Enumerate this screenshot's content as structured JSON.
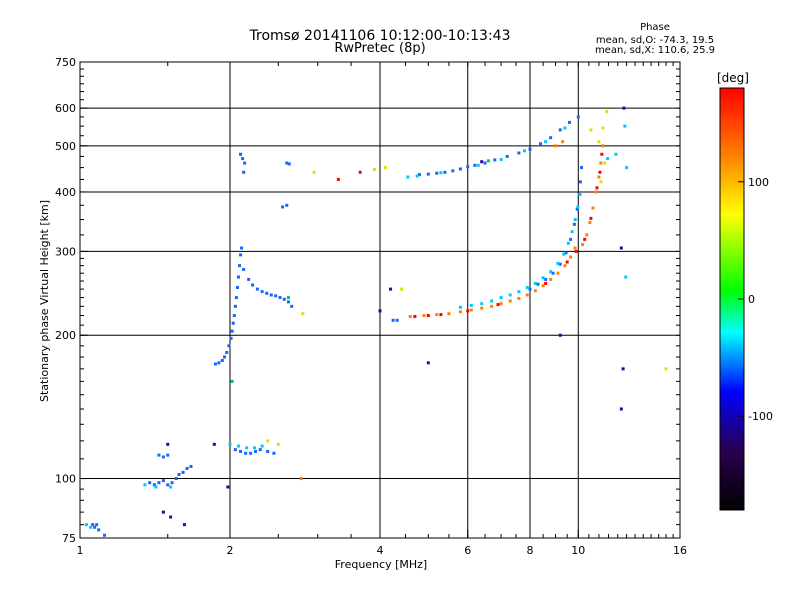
{
  "chart_data": {
    "type": "scatter",
    "title_line1": "Tromsø 20141106 10:12:00-10:13:43",
    "title_line2": "RwPretec (8p)",
    "xlabel": "Frequency [MHz]",
    "ylabel": "Stationary phase Virtual Height [km]",
    "x_scale": "log",
    "y_scale": "log",
    "xlim": [
      1,
      16
    ],
    "ylim": [
      75,
      750
    ],
    "x_ticks": [
      1,
      2,
      4,
      6,
      8,
      10,
      16
    ],
    "y_ticks": [
      75,
      100,
      200,
      300,
      400,
      500,
      600,
      750
    ],
    "grid_x": [
      2,
      4,
      6,
      8,
      10
    ],
    "grid_y": [
      100,
      200,
      300,
      400,
      500,
      600
    ],
    "grid": true,
    "stats": {
      "title": "Phase",
      "line_o": "mean, sd,O: -74.3, 19.5",
      "line_x": "mean, sd,X: 110.6, 25.9"
    },
    "colorbar": {
      "label": "[deg]",
      "range": [
        -180,
        180
      ],
      "ticks": [
        -100,
        0,
        100
      ],
      "colors": [
        "#000000",
        "#2a0050",
        "#0000ff",
        "#00ffff",
        "#00ff00",
        "#ffff00",
        "#ff8000",
        "#ff0000"
      ]
    },
    "series": [
      {
        "color": "#1565ff",
        "points": [
          [
            1.06,
            80
          ],
          [
            1.07,
            79
          ],
          [
            1.09,
            78
          ],
          [
            1.12,
            76
          ],
          [
            1.08,
            80
          ],
          [
            1.38,
            98
          ],
          [
            1.41,
            97
          ],
          [
            1.44,
            98
          ],
          [
            1.47,
            99
          ],
          [
            1.5,
            97
          ],
          [
            1.53,
            98
          ],
          [
            1.56,
            100
          ],
          [
            1.58,
            102
          ],
          [
            1.61,
            103
          ],
          [
            1.64,
            105
          ],
          [
            1.67,
            106
          ],
          [
            1.44,
            112
          ],
          [
            1.47,
            111
          ],
          [
            1.5,
            112
          ],
          [
            1.87,
            174
          ],
          [
            1.9,
            175
          ],
          [
            1.93,
            177
          ],
          [
            1.95,
            180
          ],
          [
            1.97,
            184
          ],
          [
            1.99,
            190
          ],
          [
            2.01,
            197
          ],
          [
            2.02,
            204
          ],
          [
            2.03,
            212
          ],
          [
            2.04,
            220
          ],
          [
            2.05,
            230
          ],
          [
            2.06,
            240
          ],
          [
            2.07,
            252
          ],
          [
            2.08,
            265
          ],
          [
            2.09,
            280
          ],
          [
            2.1,
            295
          ],
          [
            2.11,
            305
          ],
          [
            2.13,
            275
          ],
          [
            2.18,
            262
          ],
          [
            2.22,
            255
          ],
          [
            2.27,
            250
          ],
          [
            2.32,
            247
          ],
          [
            2.37,
            245
          ],
          [
            2.42,
            243
          ],
          [
            2.47,
            242
          ],
          [
            2.52,
            240
          ],
          [
            2.57,
            238
          ],
          [
            2.62,
            235
          ],
          [
            2.66,
            230
          ],
          [
            2.05,
            115
          ],
          [
            2.1,
            114
          ],
          [
            2.15,
            113
          ],
          [
            2.2,
            113
          ],
          [
            2.25,
            114
          ],
          [
            2.3,
            115
          ],
          [
            2.38,
            114
          ],
          [
            2.45,
            113
          ],
          [
            2.1,
            480
          ],
          [
            2.12,
            470
          ],
          [
            2.14,
            460
          ],
          [
            2.13,
            440
          ],
          [
            2.6,
            460
          ],
          [
            2.63,
            458
          ],
          [
            2.6,
            375
          ],
          [
            2.55,
            372
          ],
          [
            4.25,
            215
          ],
          [
            4.33,
            215
          ],
          [
            4.8,
            435
          ],
          [
            5.0,
            436
          ],
          [
            5.2,
            438
          ],
          [
            5.4,
            440
          ],
          [
            5.6,
            443
          ],
          [
            5.8,
            447
          ],
          [
            6.0,
            452
          ],
          [
            6.2,
            455
          ],
          [
            6.5,
            460
          ],
          [
            6.8,
            467
          ],
          [
            7.2,
            475
          ],
          [
            7.6,
            483
          ],
          [
            8.0,
            492
          ],
          [
            8.4,
            505
          ],
          [
            8.8,
            520
          ],
          [
            9.2,
            540
          ],
          [
            9.6,
            560
          ],
          [
            10.0,
            575
          ],
          [
            8.0,
            250
          ],
          [
            8.3,
            256
          ],
          [
            8.6,
            262
          ],
          [
            8.9,
            270
          ],
          [
            9.2,
            282
          ],
          [
            9.45,
            298
          ],
          [
            9.65,
            318
          ],
          [
            9.82,
            342
          ],
          [
            9.95,
            368
          ],
          [
            10.05,
            395
          ],
          [
            10.1,
            420
          ],
          [
            10.15,
            450
          ]
        ]
      },
      {
        "color": "#00c8ff",
        "points": [
          [
            1.03,
            80
          ],
          [
            1.05,
            79
          ],
          [
            1.35,
            97
          ],
          [
            1.42,
            96
          ],
          [
            1.52,
            96
          ],
          [
            2.0,
            118
          ],
          [
            2.08,
            117
          ],
          [
            2.16,
            116
          ],
          [
            2.24,
            116
          ],
          [
            2.32,
            117
          ],
          [
            4.55,
            430
          ],
          [
            4.75,
            432
          ],
          [
            5.3,
            439
          ],
          [
            6.3,
            455
          ],
          [
            7.0,
            468
          ],
          [
            7.8,
            488
          ],
          [
            8.6,
            510
          ],
          [
            9.4,
            545
          ],
          [
            5.8,
            229
          ],
          [
            6.1,
            231
          ],
          [
            6.4,
            233
          ],
          [
            6.7,
            236
          ],
          [
            7.0,
            240
          ],
          [
            7.3,
            243
          ],
          [
            7.6,
            247
          ],
          [
            7.9,
            252
          ],
          [
            8.2,
            257
          ],
          [
            8.5,
            264
          ],
          [
            8.8,
            272
          ],
          [
            9.1,
            283
          ],
          [
            9.35,
            296
          ],
          [
            9.55,
            312
          ],
          [
            9.72,
            330
          ],
          [
            9.86,
            350
          ],
          [
            9.98,
            372
          ],
          [
            10.08,
            395
          ],
          [
            11.45,
            470
          ],
          [
            11.9,
            480
          ],
          [
            12.4,
            550
          ],
          [
            12.45,
            265
          ],
          [
            12.5,
            450
          ]
        ]
      },
      {
        "color": "#ff8000",
        "points": [
          [
            4.6,
            219
          ],
          [
            4.9,
            220
          ],
          [
            5.2,
            221
          ],
          [
            5.5,
            222
          ],
          [
            5.8,
            224
          ],
          [
            6.1,
            226
          ],
          [
            6.4,
            228
          ],
          [
            6.7,
            230
          ],
          [
            7.0,
            233
          ],
          [
            7.3,
            236
          ],
          [
            7.6,
            239
          ],
          [
            7.9,
            243
          ],
          [
            8.2,
            248
          ],
          [
            8.5,
            254
          ],
          [
            8.8,
            262
          ],
          [
            9.1,
            270
          ],
          [
            9.4,
            280
          ],
          [
            9.65,
            292
          ],
          [
            9.85,
            305
          ],
          [
            10.2,
            310
          ],
          [
            10.4,
            325
          ],
          [
            10.55,
            345
          ],
          [
            10.7,
            370
          ],
          [
            10.85,
            400
          ],
          [
            11.0,
            430
          ],
          [
            11.1,
            460
          ],
          [
            11.2,
            500
          ],
          [
            9.0,
            500
          ],
          [
            9.3,
            510
          ],
          [
            2.78,
            100
          ]
        ]
      },
      {
        "color": "#ff0000",
        "points": [
          [
            4.7,
            219
          ],
          [
            5.0,
            220
          ],
          [
            5.3,
            221
          ],
          [
            6.0,
            225
          ],
          [
            6.9,
            232
          ],
          [
            8.6,
            257
          ],
          [
            9.5,
            285
          ],
          [
            9.9,
            300
          ],
          [
            10.3,
            318
          ],
          [
            10.6,
            352
          ],
          [
            10.9,
            408
          ],
          [
            11.05,
            440
          ],
          [
            11.15,
            480
          ],
          [
            3.3,
            425
          ],
          [
            3.65,
            440
          ]
        ]
      },
      {
        "color": "#e0e000",
        "points": [
          [
            2.38,
            120
          ],
          [
            2.5,
            118
          ],
          [
            2.8,
            222
          ],
          [
            2.95,
            440
          ],
          [
            3.9,
            446
          ],
          [
            4.1,
            450
          ],
          [
            4.42,
            250
          ],
          [
            11.0,
            510
          ],
          [
            11.2,
            545
          ],
          [
            11.4,
            590
          ],
          [
            11.1,
            420
          ],
          [
            11.3,
            460
          ],
          [
            10.6,
            540
          ],
          [
            15.0,
            170
          ]
        ]
      },
      {
        "color": "#3000a0",
        "points": [
          [
            1.47,
            85
          ],
          [
            1.52,
            83
          ],
          [
            1.62,
            80
          ],
          [
            1.86,
            118
          ],
          [
            1.98,
            96
          ],
          [
            4.0,
            225
          ],
          [
            4.2,
            250
          ],
          [
            5.0,
            175
          ],
          [
            6.4,
            463
          ],
          [
            9.2,
            200
          ],
          [
            12.2,
            305
          ],
          [
            12.3,
            170
          ],
          [
            12.2,
            140
          ],
          [
            12.35,
            600
          ],
          [
            1.5,
            118
          ]
        ]
      },
      {
        "color": "#00c060",
        "points": [
          [
            2.02,
            160
          ],
          [
            2.62,
            240
          ],
          [
            6.6,
            465
          ]
        ]
      }
    ]
  }
}
